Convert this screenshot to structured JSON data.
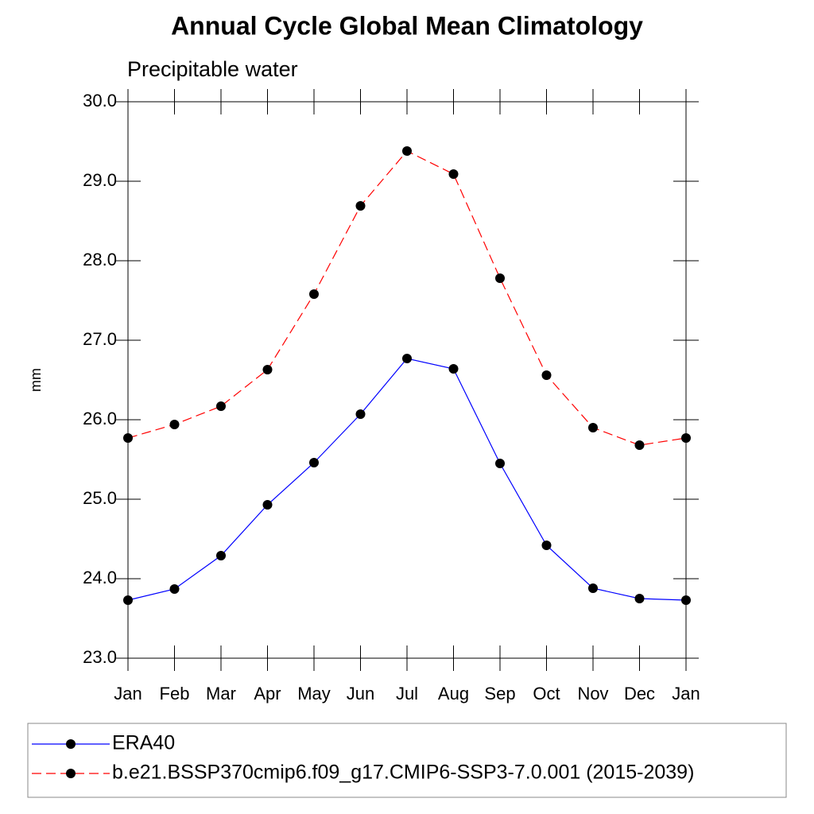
{
  "chart_data": {
    "type": "line",
    "title": "Annual Cycle Global Mean Climatology",
    "subtitle": "Precipitable water",
    "y_label": "mm",
    "categories": [
      "Jan",
      "Feb",
      "Mar",
      "Apr",
      "May",
      "Jun",
      "Jul",
      "Aug",
      "Sep",
      "Oct",
      "Nov",
      "Dec",
      "Jan"
    ],
    "series": [
      {
        "name": "ERA40",
        "color": "#0000ff",
        "dash": "solid",
        "values": [
          23.73,
          23.87,
          24.29,
          24.93,
          25.46,
          26.07,
          26.77,
          26.64,
          25.45,
          24.42,
          23.88,
          23.75,
          23.73
        ]
      },
      {
        "name": "b.e21.BSSP370cmip6.f09_g17.CMIP6-SSP3-7.0.001 (2015-2039)",
        "color": "#ff0000",
        "dash": "dashed",
        "values": [
          25.77,
          25.94,
          26.17,
          26.63,
          27.58,
          28.69,
          29.38,
          29.09,
          27.78,
          26.56,
          25.9,
          25.68,
          25.77
        ]
      }
    ],
    "ylim": [
      23.0,
      30.0
    ],
    "yticks": [
      {
        "value": 23,
        "label": "23.0"
      },
      {
        "value": 24,
        "label": "24.0"
      },
      {
        "value": 25,
        "label": "25.0"
      },
      {
        "value": 26,
        "label": "26.0"
      },
      {
        "value": 27,
        "label": "27.0"
      },
      {
        "value": 28,
        "label": "28.0"
      },
      {
        "value": 29,
        "label": "29.0"
      },
      {
        "value": 30,
        "label": "30.0"
      }
    ],
    "legend": "bottom"
  }
}
